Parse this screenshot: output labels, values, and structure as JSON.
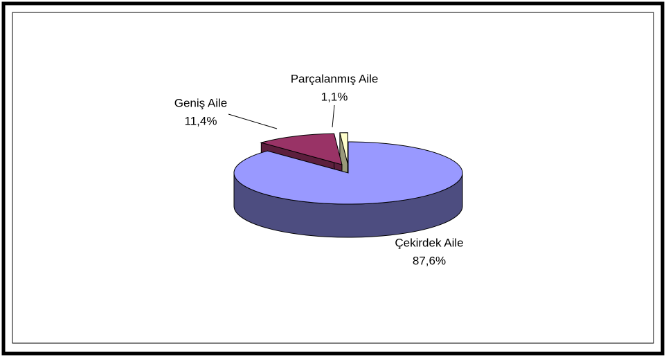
{
  "chart_data": {
    "type": "pie3d",
    "categories": [
      "Çekirdek Aile",
      "Geniş Aile",
      "Parçalanmış Aile"
    ],
    "values": [
      87.6,
      11.4,
      1.1
    ],
    "value_labels": [
      "87,6%",
      "11,4%",
      "1,1%"
    ],
    "colors": [
      "#9999ff",
      "#993366",
      "#ffffcc"
    ]
  }
}
